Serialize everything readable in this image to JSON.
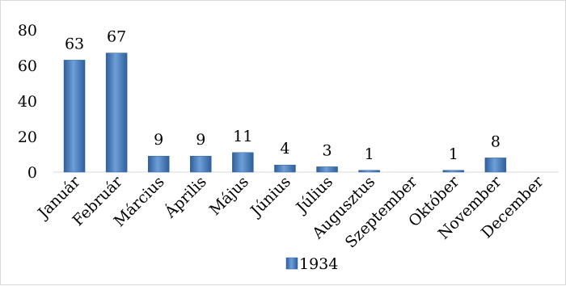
{
  "chart_data": {
    "type": "bar",
    "categories": [
      "Január",
      "Február",
      "Március",
      "Április",
      "Május",
      "Június",
      "Július",
      "Augusztus",
      "Szeptember",
      "Október",
      "November",
      "December"
    ],
    "series": [
      {
        "name": "1934",
        "values": [
          63,
          67,
          9,
          9,
          11,
          4,
          3,
          1,
          0,
          1,
          8,
          0
        ]
      }
    ],
    "data_labels": [
      "63",
      "67",
      "9",
      "9",
      "11",
      "4",
      "3",
      "1",
      "",
      "1",
      "8",
      ""
    ],
    "yticks": [
      0,
      20,
      40,
      60,
      80
    ],
    "ylim": [
      0,
      80
    ],
    "grid": false,
    "legend_position": "bottom",
    "colors": {
      "bar_light": "#6f9fd8",
      "bar_dark": "#2e5f9c",
      "axis": "#d9d9d9"
    }
  }
}
